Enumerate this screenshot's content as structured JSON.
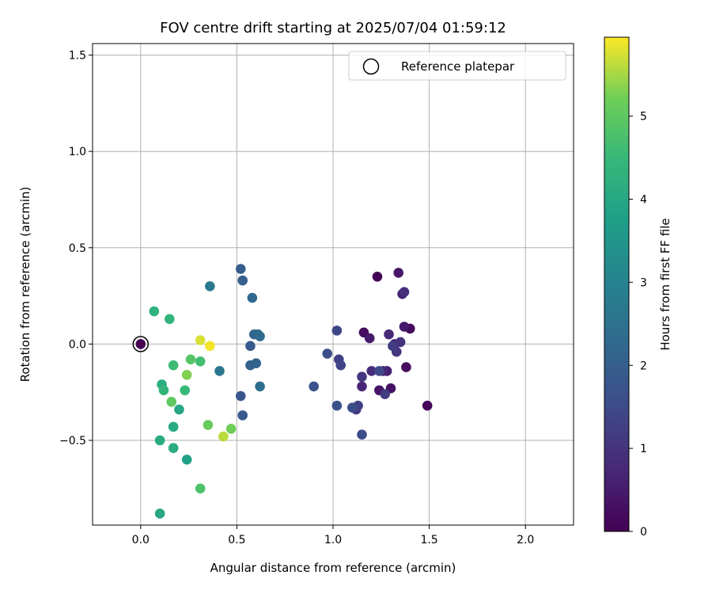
{
  "chart_data": {
    "type": "scatter",
    "title": "FOV centre drift starting at 2025/07/04 01:59:12",
    "xlabel": "Angular distance from reference (arcmin)",
    "ylabel": "Rotation from reference (arcmin)",
    "xlim": [
      -0.25,
      2.25
    ],
    "ylim": [
      -0.94,
      1.56
    ],
    "xticks": [
      0.0,
      0.5,
      1.0,
      1.5,
      2.0
    ],
    "xtick_labels": [
      "0.0",
      "0.5",
      "1.0",
      "1.5",
      "2.0"
    ],
    "yticks": [
      -0.5,
      0.0,
      0.5,
      1.0,
      1.5
    ],
    "ytick_labels": [
      "−0.5",
      "0.0",
      "0.5",
      "1.0",
      "1.5"
    ],
    "grid": true,
    "legend": {
      "position": "top-right",
      "entries": [
        "Reference platepar"
      ]
    },
    "reference_point": {
      "x": 0.0,
      "y": 0.0,
      "hours": 0.0
    },
    "colorbar": {
      "label": "Hours from first FF file",
      "colormap": "viridis",
      "range": [
        0,
        5.95
      ],
      "ticks": [
        0,
        1,
        2,
        3,
        4,
        5
      ],
      "tick_labels": [
        "0",
        "1",
        "2",
        "3",
        "4",
        "5"
      ]
    },
    "points": [
      {
        "x": 1.23,
        "y": 0.35,
        "hours": 0.05
      },
      {
        "x": 1.49,
        "y": -0.32,
        "hours": 0.1
      },
      {
        "x": 1.4,
        "y": 0.08,
        "hours": 0.15
      },
      {
        "x": 1.38,
        "y": -0.12,
        "hours": 0.2
      },
      {
        "x": 1.16,
        "y": 0.06,
        "hours": 0.25
      },
      {
        "x": 1.3,
        "y": -0.23,
        "hours": 0.3
      },
      {
        "x": 1.24,
        "y": -0.24,
        "hours": 0.35
      },
      {
        "x": 1.34,
        "y": 0.37,
        "hours": 0.4
      },
      {
        "x": 1.37,
        "y": 0.09,
        "hours": 0.45
      },
      {
        "x": 1.19,
        "y": 0.03,
        "hours": 0.5
      },
      {
        "x": 1.28,
        "y": -0.14,
        "hours": 0.55
      },
      {
        "x": 1.32,
        "y": 0.0,
        "hours": 0.6
      },
      {
        "x": 1.36,
        "y": 0.26,
        "hours": 0.65
      },
      {
        "x": 1.15,
        "y": -0.22,
        "hours": 0.7
      },
      {
        "x": 1.26,
        "y": -0.14,
        "hours": 0.75
      },
      {
        "x": 1.29,
        "y": 0.05,
        "hours": 0.8
      },
      {
        "x": 1.2,
        "y": -0.14,
        "hours": 0.85
      },
      {
        "x": 1.37,
        "y": 0.27,
        "hours": 0.9
      },
      {
        "x": 1.35,
        "y": 0.01,
        "hours": 0.95
      },
      {
        "x": 1.33,
        "y": -0.04,
        "hours": 1.0
      },
      {
        "x": 1.15,
        "y": -0.17,
        "hours": 1.05
      },
      {
        "x": 1.12,
        "y": -0.34,
        "hours": 1.1
      },
      {
        "x": 1.27,
        "y": -0.26,
        "hours": 1.15
      },
      {
        "x": 1.31,
        "y": -0.01,
        "hours": 1.2
      },
      {
        "x": 1.03,
        "y": -0.08,
        "hours": 1.25
      },
      {
        "x": 1.13,
        "y": -0.32,
        "hours": 1.3
      },
      {
        "x": 1.04,
        "y": -0.11,
        "hours": 1.35
      },
      {
        "x": 1.02,
        "y": 0.07,
        "hours": 1.4
      },
      {
        "x": 1.24,
        "y": -0.14,
        "hours": 1.45
      },
      {
        "x": 1.15,
        "y": -0.47,
        "hours": 1.5
      },
      {
        "x": 1.1,
        "y": -0.33,
        "hours": 1.55
      },
      {
        "x": 0.97,
        "y": -0.05,
        "hours": 1.6
      },
      {
        "x": 1.02,
        "y": -0.32,
        "hours": 1.65
      },
      {
        "x": 0.9,
        "y": -0.22,
        "hours": 1.7
      },
      {
        "x": 0.52,
        "y": -0.27,
        "hours": 1.8
      },
      {
        "x": 0.53,
        "y": -0.37,
        "hours": 1.85
      },
      {
        "x": 0.57,
        "y": -0.01,
        "hours": 1.9
      },
      {
        "x": 0.52,
        "y": 0.39,
        "hours": 1.95
      },
      {
        "x": 0.53,
        "y": 0.33,
        "hours": 2.0
      },
      {
        "x": 0.57,
        "y": -0.11,
        "hours": 2.05
      },
      {
        "x": 0.6,
        "y": -0.1,
        "hours": 2.1
      },
      {
        "x": 0.59,
        "y": 0.05,
        "hours": 2.15
      },
      {
        "x": 0.61,
        "y": 0.05,
        "hours": 2.2
      },
      {
        "x": 0.58,
        "y": 0.24,
        "hours": 2.25
      },
      {
        "x": 0.62,
        "y": 0.04,
        "hours": 2.3
      },
      {
        "x": 0.62,
        "y": -0.22,
        "hours": 2.4
      },
      {
        "x": 0.41,
        "y": -0.14,
        "hours": 2.6
      },
      {
        "x": 0.36,
        "y": 0.3,
        "hours": 2.7
      },
      {
        "x": 0.24,
        "y": -0.6,
        "hours": 3.8
      },
      {
        "x": 0.2,
        "y": -0.34,
        "hours": 3.95
      },
      {
        "x": 0.1,
        "y": -0.88,
        "hours": 4.0
      },
      {
        "x": 0.17,
        "y": -0.43,
        "hours": 4.05
      },
      {
        "x": 0.1,
        "y": -0.5,
        "hours": 4.1
      },
      {
        "x": 0.17,
        "y": -0.54,
        "hours": 4.15
      },
      {
        "x": 0.11,
        "y": -0.21,
        "hours": 4.2
      },
      {
        "x": 0.07,
        "y": 0.17,
        "hours": 4.3
      },
      {
        "x": 0.15,
        "y": 0.13,
        "hours": 4.35
      },
      {
        "x": 0.12,
        "y": -0.24,
        "hours": 4.4
      },
      {
        "x": 0.23,
        "y": -0.24,
        "hours": 4.5
      },
      {
        "x": 0.17,
        "y": -0.11,
        "hours": 4.55
      },
      {
        "x": 0.31,
        "y": -0.09,
        "hours": 4.65
      },
      {
        "x": 0.31,
        "y": -0.75,
        "hours": 4.8
      },
      {
        "x": 0.26,
        "y": -0.08,
        "hours": 4.9
      },
      {
        "x": 0.16,
        "y": -0.3,
        "hours": 5.0
      },
      {
        "x": 0.35,
        "y": -0.42,
        "hours": 5.1
      },
      {
        "x": 0.47,
        "y": -0.44,
        "hours": 5.2
      },
      {
        "x": 0.24,
        "y": -0.16,
        "hours": 5.3
      },
      {
        "x": 0.43,
        "y": -0.48,
        "hours": 5.6
      },
      {
        "x": 0.31,
        "y": 0.02,
        "hours": 5.75
      },
      {
        "x": 0.36,
        "y": -0.01,
        "hours": 5.9
      }
    ]
  }
}
